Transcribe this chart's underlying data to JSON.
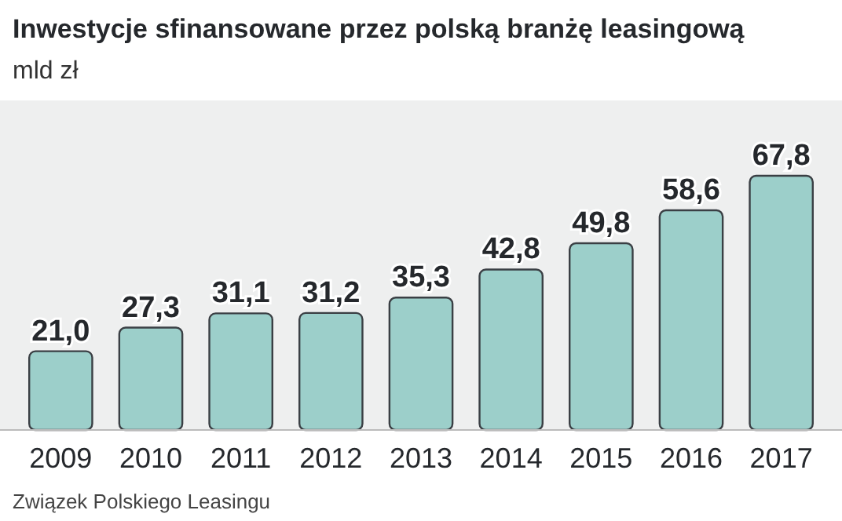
{
  "chart_data": {
    "type": "bar",
    "title": "Inwestycje sfinansowane przez polską branżę leasingową",
    "subtitle": "mld zł",
    "categories": [
      "2009",
      "2010",
      "2011",
      "2012",
      "2013",
      "2014",
      "2015",
      "2016",
      "2017"
    ],
    "values": [
      21.0,
      27.3,
      31.1,
      31.2,
      35.3,
      42.8,
      49.8,
      58.6,
      67.8
    ],
    "value_labels": [
      "21,0",
      "27,3",
      "31,1",
      "31,2",
      "35,3",
      "42,8",
      "49,8",
      "58,6",
      "67,8"
    ],
    "color": "#9ccfca",
    "annotations": [
      "Związek Polskiego Leasingu"
    ]
  }
}
